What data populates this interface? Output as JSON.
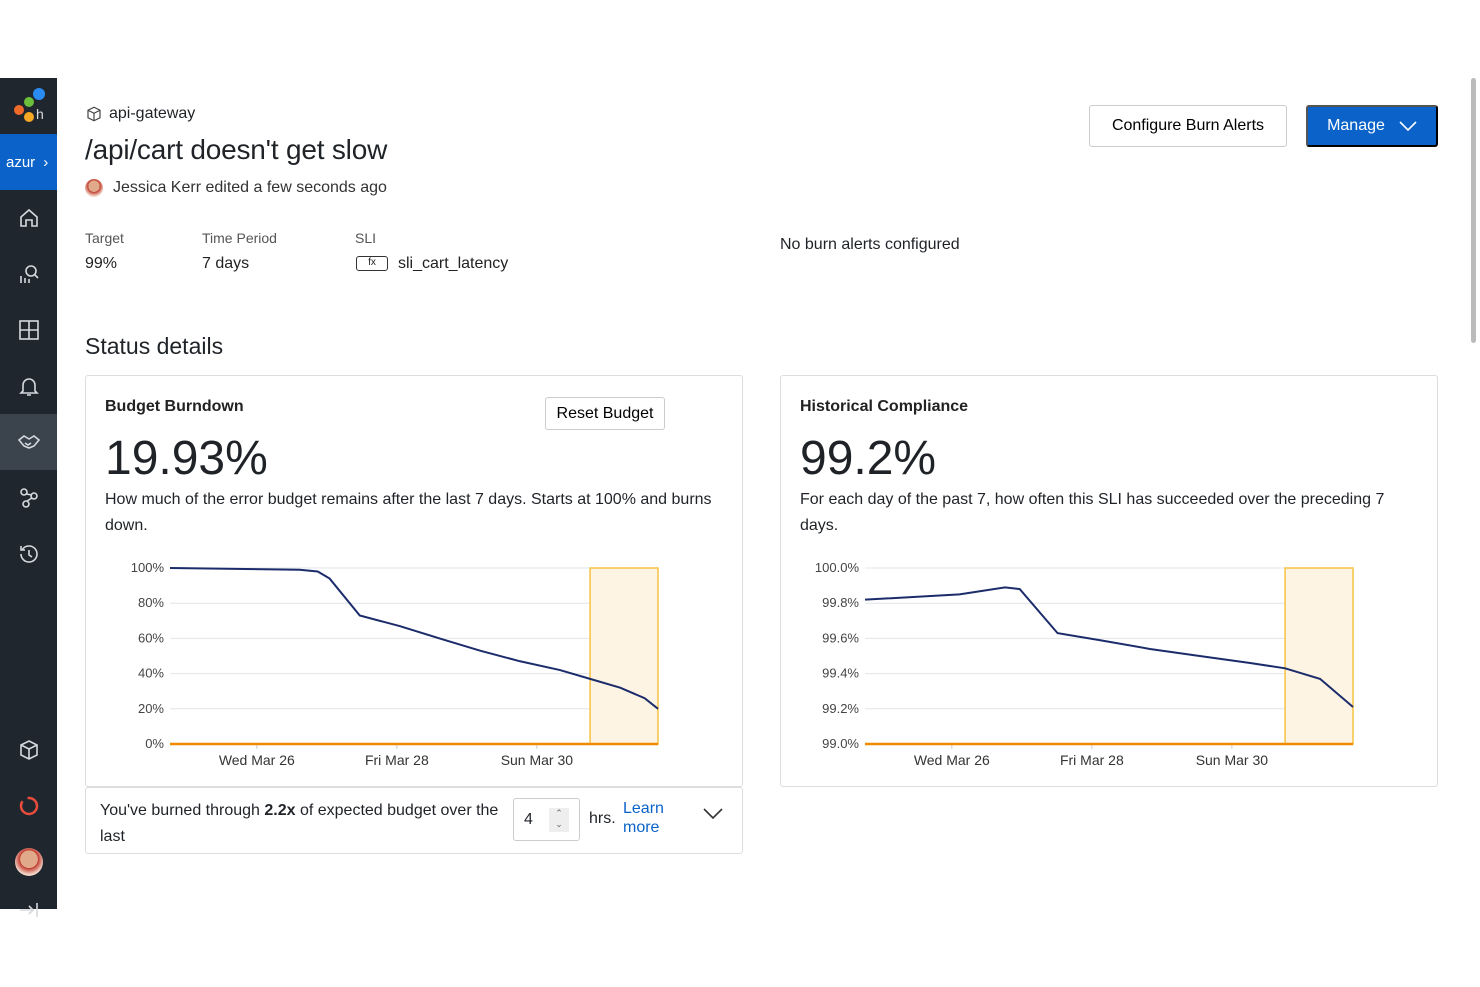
{
  "sidebar": {
    "team": "azur",
    "items": [
      "home",
      "query",
      "boards",
      "triggers",
      "slos",
      "service-map",
      "history"
    ],
    "bottom": [
      "datasets",
      "integrations",
      "account",
      "collapse"
    ]
  },
  "header": {
    "breadcrumb": "api-gateway",
    "title": "/api/cart doesn't get slow",
    "edited": "Jessica Kerr edited a few seconds ago",
    "configure_label": "Configure Burn Alerts",
    "manage_label": "Manage"
  },
  "meta": {
    "target_label": "Target",
    "target": "99%",
    "period_label": "Time Period",
    "period": "7 days",
    "sli_label": "SLI",
    "sli_badge": "fx",
    "sli": "sli_cart_latency",
    "burn_alerts": "No burn alerts configured"
  },
  "status_title": "Status details",
  "burndown": {
    "title": "Budget Burndown",
    "reset_label": "Reset Budget",
    "value": "19.93%",
    "description": "How much of the error budget remains after the last 7 days. Starts at 100% and burns down.",
    "footer": {
      "text_before": "You've burned through ",
      "multiplier": "2.2x",
      "text_after": " of expected budget over the last",
      "hours": "4",
      "unit": "hrs.",
      "learn_more": "Learn more"
    }
  },
  "compliance": {
    "title": "Historical Compliance",
    "value": "99.2%",
    "description": "For each day of the past 7, how often this SLI has succeeded over the preceding 7 days."
  },
  "colors": {
    "line": "#1c2c6b",
    "threshold": "#f08a00",
    "highlight": "#f5c242",
    "accent": "#0b63c9"
  },
  "chart_data": [
    {
      "type": "line",
      "title": "Budget Burndown",
      "x_unit": "day of March",
      "xlim": [
        24.76,
        31.73
      ],
      "ylim": [
        0,
        100
      ],
      "yticks": [
        0,
        20,
        40,
        60,
        80,
        100
      ],
      "ytick_labels": [
        "0%",
        "20%",
        "40%",
        "60%",
        "80%",
        "100%"
      ],
      "xticks": [
        26,
        28,
        30
      ],
      "xtick_labels": [
        "Wed Mar 26",
        "Fri Mar 28",
        "Sun Mar 30"
      ],
      "highlight": [
        30.76,
        31.73
      ],
      "threshold": 0,
      "x": [
        24.76,
        26.61,
        26.87,
        27.04,
        27.47,
        28.04,
        28.61,
        29.19,
        29.76,
        30.33,
        30.76,
        31.19,
        31.54,
        31.73
      ],
      "y": [
        100,
        99,
        98,
        94,
        73,
        67,
        60,
        53,
        47,
        42,
        37,
        32,
        26,
        20
      ]
    },
    {
      "type": "line",
      "title": "Historical Compliance",
      "x_unit": "day of March",
      "xlim": [
        24.76,
        31.73
      ],
      "ylim": [
        99,
        100
      ],
      "yticks": [
        99,
        99.2,
        99.4,
        99.6,
        99.8,
        100
      ],
      "ytick_labels": [
        "99.0%",
        "99.2%",
        "99.4%",
        "99.6%",
        "99.8%",
        "100.0%"
      ],
      "xticks": [
        26,
        28,
        30
      ],
      "xtick_labels": [
        "Wed Mar 26",
        "Fri Mar 28",
        "Sun Mar 30"
      ],
      "highlight": [
        30.76,
        31.73
      ],
      "threshold": 99,
      "x": [
        24.76,
        26.11,
        26.76,
        26.97,
        27.51,
        28.11,
        28.83,
        29.54,
        30.26,
        30.76,
        31.26,
        31.73
      ],
      "y": [
        99.82,
        99.85,
        99.89,
        99.88,
        99.63,
        99.59,
        99.54,
        99.5,
        99.46,
        99.43,
        99.37,
        99.21
      ]
    }
  ]
}
